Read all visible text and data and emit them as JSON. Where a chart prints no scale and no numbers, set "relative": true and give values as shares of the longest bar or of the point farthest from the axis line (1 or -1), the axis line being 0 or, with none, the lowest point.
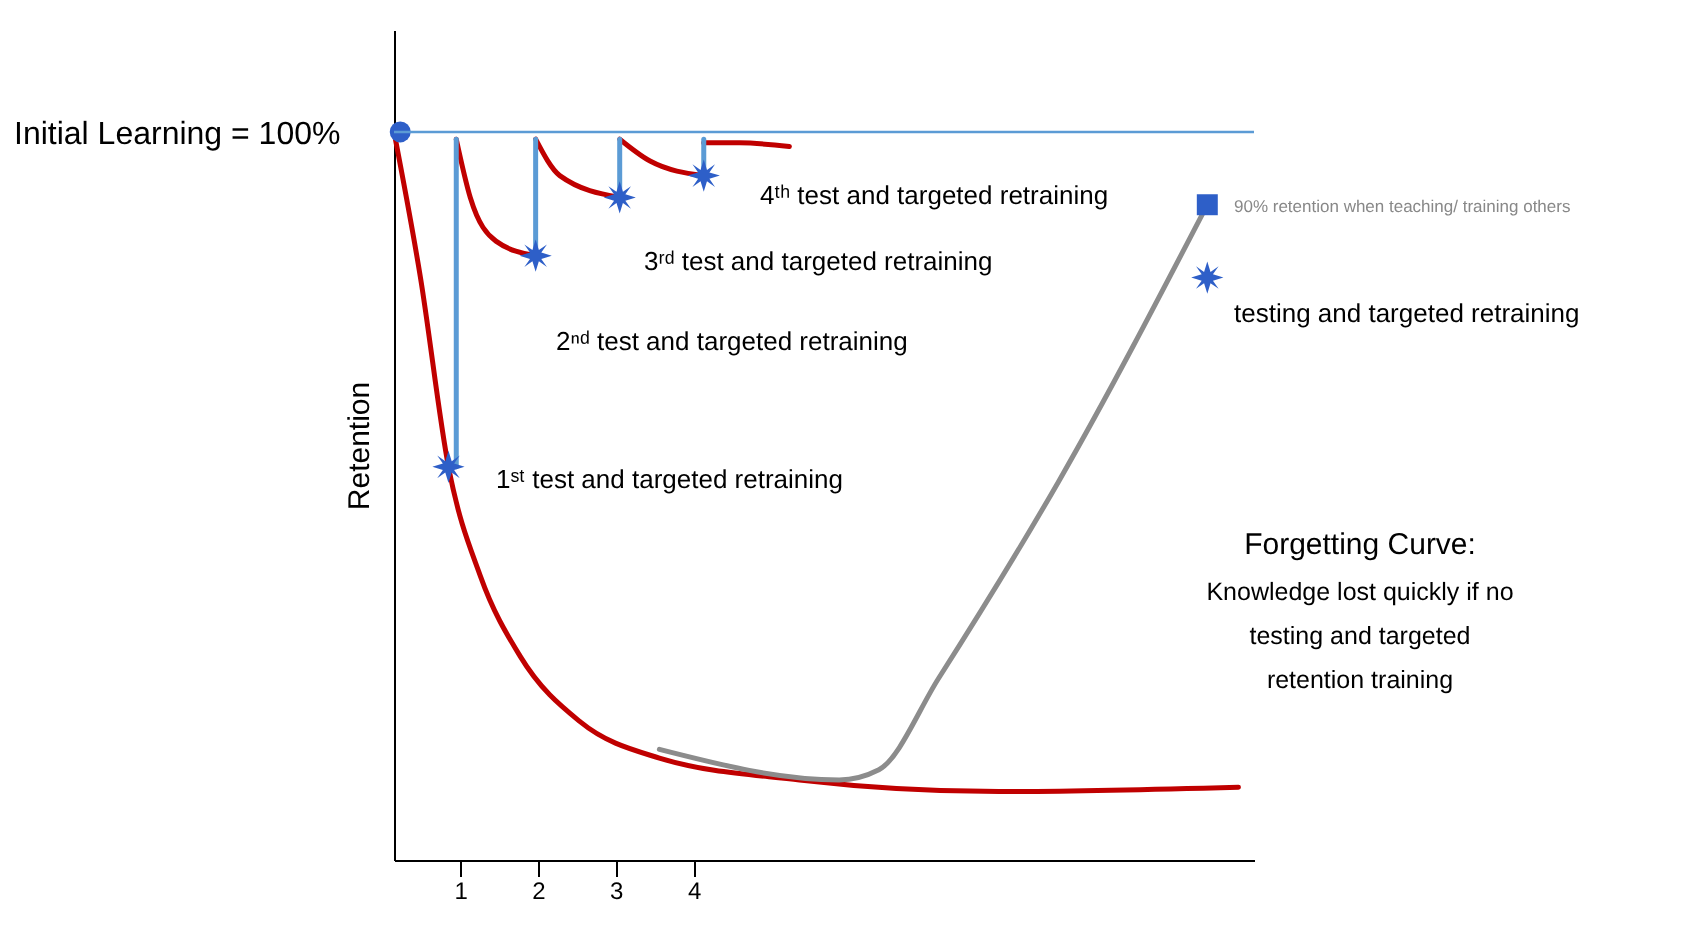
{
  "chart_data": {
    "type": "line",
    "relative": true,
    "ylabel": "Retention",
    "xlim": [
      0.15,
      11.2
    ],
    "xticks": [
      1,
      2,
      3,
      4
    ],
    "grid": false,
    "line_style": "solid",
    "series": [
      {
        "color": "#c00000",
        "x": [
          0.15,
          0.49,
          0.85,
          1.26,
          1.77,
          2.54,
          3.56,
          5.36,
          7.92,
          11.0
        ],
        "values": [
          1,
          0.8,
          0.54,
          0.39,
          0.28,
          0.19,
          0.14,
          0.11,
          0.094,
          0.1
        ]
      },
      {
        "color": "#c00000",
        "x": [
          0.95,
          1.13,
          1.46,
          1.97
        ],
        "values": [
          0.99,
          0.91,
          0.85,
          0.83
        ]
      },
      {
        "color": "#c00000",
        "x": [
          1.97,
          2.28,
          3.05
        ],
        "values": [
          0.99,
          0.94,
          0.91
        ]
      },
      {
        "color": "#c00000",
        "x": [
          3.05,
          3.44,
          4.13
        ],
        "values": [
          0.99,
          0.96,
          0.94
        ]
      },
      {
        "color": "#c00000",
        "x": [
          4.13,
          4.59,
          5.23
        ],
        "values": [
          0.985,
          0.985,
          0.98
        ]
      },
      {
        "color": "#8c8c8c",
        "x": [
          3.56,
          5.87,
          6.38,
          7.15,
          8.69,
          10.6
        ],
        "values": [
          0.152,
          0.11,
          0.124,
          0.25,
          0.52,
          0.9
        ]
      },
      {
        "color": "#5b9bd5",
        "x": [
          0.95,
          0.95
        ],
        "values": [
          0.54,
          0.99
        ]
      },
      {
        "color": "#5b9bd5",
        "x": [
          1.97,
          1.97
        ],
        "values": [
          0.83,
          0.99
        ]
      },
      {
        "color": "#5b9bd5",
        "x": [
          3.05,
          3.05
        ],
        "values": [
          0.91,
          0.99
        ]
      },
      {
        "color": "#5b9bd5",
        "x": [
          4.13,
          4.13
        ],
        "values": [
          0.94,
          0.99
        ]
      },
      {
        "type": "scatter",
        "marker": "star",
        "color": "#2e5fc8",
        "x": [
          0.85,
          1.97,
          3.05,
          4.13,
          10.6
        ],
        "values": [
          0.54,
          0.83,
          0.91,
          0.94,
          0.8
        ]
      },
      {
        "type": "scatter",
        "marker": "circle",
        "color": "#2e5fc8",
        "x": [
          0.23
        ],
        "values": [
          1
        ]
      },
      {
        "type": "scatter",
        "marker": "square",
        "color": "#2e5fc8",
        "x": [
          10.6
        ],
        "values": [
          0.9
        ]
      }
    ],
    "ref_lines": [
      {
        "axis": "y",
        "value": 1,
        "color": "#5b9bd5"
      }
    ],
    "annotations": [
      "1ˢᵗ test and targeted retraining",
      "2ⁿᵈ test and targeted retraining",
      "3ʳᵈ test and targeted retraining",
      "4ᵗʰ test and targeted retraining",
      "90% retention when teaching/ training others",
      "testing and targeted retraining",
      "Initial Learning = 100%",
      "Forgetting Curve:",
      "Knowledge lost quickly if no testing and targeted retention training"
    ]
  }
}
